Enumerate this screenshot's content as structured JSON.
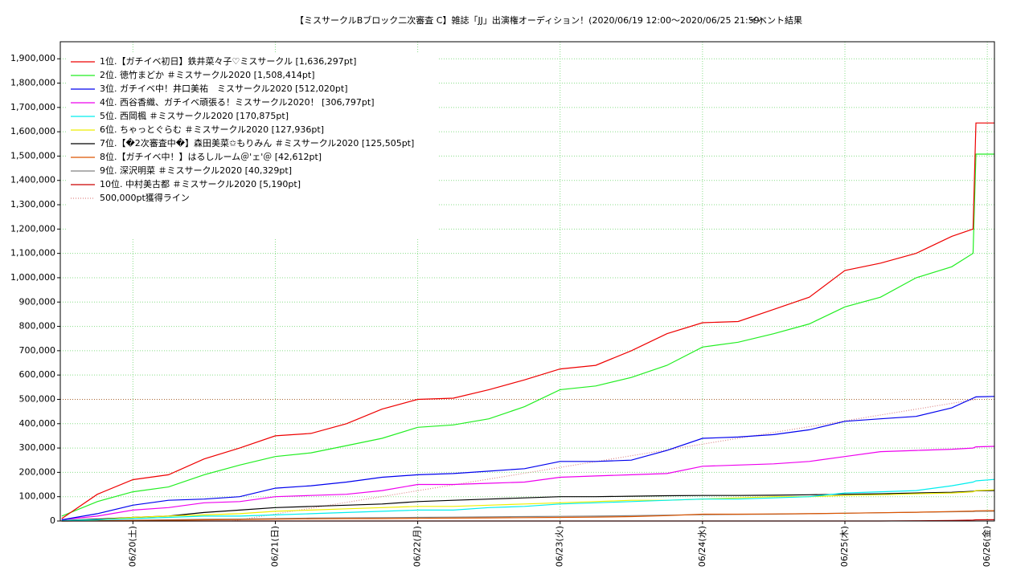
{
  "chart_data": {
    "type": "line",
    "title": "【ミスサークルBブロック二次審査 C】雑誌「JJ」出演権オーディション！(2020/06/19 12:00〜2020/06/25 21:59)",
    "subtitle": "イベント結果",
    "xlim": [
      19.49,
      26.05
    ],
    "ylim": [
      0,
      1970000
    ],
    "xticks": [
      {
        "value": 20,
        "label": "06/20(土)"
      },
      {
        "value": 21,
        "label": "06/21(日)"
      },
      {
        "value": 22,
        "label": "06/22(月)"
      },
      {
        "value": 23,
        "label": "06/23(火)"
      },
      {
        "value": 24,
        "label": "06/24(水)"
      },
      {
        "value": 25,
        "label": "06/25(木)"
      },
      {
        "value": 26,
        "label": "06/26(金)"
      }
    ],
    "yticks": [
      0,
      {
        "value": 100000,
        "label": "100,000"
      },
      {
        "value": 200000,
        "label": "200,000"
      },
      {
        "value": 300000,
        "label": "300,000"
      },
      {
        "value": 400000,
        "label": "400,000"
      },
      {
        "value": 500000,
        "label": "500,000"
      },
      {
        "value": 600000,
        "label": "600,000"
      },
      {
        "value": 700000,
        "label": "700,000"
      },
      {
        "value": 800000,
        "label": "800,000"
      },
      {
        "value": 900000,
        "label": "900,000"
      },
      {
        "value": 1000000,
        "label": "1,000,000"
      },
      {
        "value": 1100000,
        "label": "1,100,000"
      },
      {
        "value": 1200000,
        "label": "1,200,000"
      },
      {
        "value": 1300000,
        "label": "1,300,000"
      },
      {
        "value": 1400000,
        "label": "1,400,000"
      },
      {
        "value": 1500000,
        "label": "1,500,000"
      },
      {
        "value": 1600000,
        "label": "1,600,000"
      },
      {
        "value": 1700000,
        "label": "1,700,000"
      },
      {
        "value": 1800000,
        "label": "1,800,000"
      },
      {
        "value": 1900000,
        "label": "1,900,000"
      }
    ],
    "grid": true,
    "grid_color": "#88dd88",
    "legend": "top-left",
    "x": [
      19.5,
      19.75,
      20,
      20.25,
      20.5,
      20.75,
      21,
      21.25,
      21.5,
      21.75,
      22,
      22.25,
      22.5,
      22.75,
      23,
      23.25,
      23.5,
      23.75,
      24,
      24.25,
      24.5,
      24.75,
      25,
      25.25,
      25.5,
      25.75,
      25.9,
      25.92,
      26.05
    ],
    "series": [
      {
        "name": "1位.【ガチイベ初日】鉄井菜々子♡ミスサークル [1,636,297pt]",
        "color": "#ee0000",
        "values": [
          10000,
          110000,
          170000,
          190000,
          255000,
          300000,
          350000,
          360000,
          400000,
          460000,
          500000,
          505000,
          540000,
          580000,
          625000,
          640000,
          700000,
          770000,
          815000,
          820000,
          870000,
          920000,
          1030000,
          1060000,
          1100000,
          1170000,
          1200000,
          1636000,
          1636000
        ]
      },
      {
        "name": "2位. 徳竹まどか ＃ミスサークル2020 [1,508,414pt]",
        "color": "#22ee22",
        "values": [
          20000,
          80000,
          120000,
          140000,
          190000,
          230000,
          265000,
          280000,
          310000,
          340000,
          385000,
          395000,
          420000,
          470000,
          540000,
          555000,
          590000,
          640000,
          715000,
          735000,
          770000,
          810000,
          880000,
          920000,
          1000000,
          1045000,
          1100000,
          1508000,
          1508000
        ]
      },
      {
        "name": "3位. ガチイベ中！井口美祐　ミスサークル2020 [512,020pt]",
        "color": "#0000ee",
        "values": [
          5000,
          30000,
          65000,
          85000,
          90000,
          100000,
          135000,
          145000,
          160000,
          180000,
          190000,
          195000,
          205000,
          215000,
          245000,
          245000,
          250000,
          290000,
          340000,
          345000,
          355000,
          375000,
          410000,
          420000,
          430000,
          465000,
          505000,
          510000,
          512000
        ]
      },
      {
        "name": "4位. 西谷香織、ガチイベ頑張る！ミスサークル2020！ [306,797pt]",
        "color": "#ee00ee",
        "values": [
          5000,
          20000,
          45000,
          55000,
          75000,
          80000,
          100000,
          105000,
          110000,
          125000,
          150000,
          150000,
          155000,
          160000,
          180000,
          185000,
          190000,
          195000,
          225000,
          230000,
          235000,
          245000,
          265000,
          285000,
          290000,
          295000,
          300000,
          305000,
          307000
        ]
      },
      {
        "name": "5位. 西岡楓 ＃ミスサークル2020 [170,875pt]",
        "color": "#00eeee",
        "values": [
          2000,
          5000,
          10000,
          15000,
          20000,
          20000,
          25000,
          30000,
          35000,
          40000,
          45000,
          45000,
          55000,
          60000,
          70000,
          75000,
          80000,
          85000,
          90000,
          90000,
          95000,
          100000,
          115000,
          120000,
          125000,
          145000,
          160000,
          165000,
          171000
        ]
      },
      {
        "name": "6位. ちゃっとぐらむ ＃ミスサークル2020 [127,936pt]",
        "color": "#eeee00",
        "values": [
          2000,
          5000,
          15000,
          20000,
          25000,
          30000,
          40000,
          45000,
          50000,
          55000,
          60000,
          60000,
          65000,
          70000,
          75000,
          80000,
          85000,
          85000,
          90000,
          95000,
          100000,
          100000,
          105000,
          108000,
          112000,
          115000,
          120000,
          125000,
          128000
        ]
      },
      {
        "name": "7位.【�2次審査中�】森田美菜✩もりみん ＃ミスサークル2020 [125,505pt]",
        "color": "#000000",
        "values": [
          2000,
          8000,
          15000,
          20000,
          35000,
          45000,
          55000,
          60000,
          65000,
          70000,
          80000,
          85000,
          90000,
          95000,
          100000,
          100000,
          102000,
          104000,
          105000,
          105000,
          106000,
          108000,
          110000,
          112000,
          115000,
          118000,
          122000,
          124000,
          125500
        ]
      },
      {
        "name": "8位.【ガチイベ中！】はるしルーム＠'ェ'＠ [42,612pt]",
        "color": "#dd5500",
        "values": [
          0,
          1000,
          2000,
          3000,
          5000,
          6000,
          8000,
          9000,
          10000,
          10000,
          11000,
          12000,
          13000,
          14000,
          15000,
          16000,
          18000,
          22000,
          28000,
          28000,
          29000,
          30000,
          32000,
          34000,
          36000,
          39000,
          41000,
          42000,
          42600
        ]
      },
      {
        "name": "9位. 深沢明菜 ＃ミスサークル2020 [40,329pt]",
        "color": "#808080",
        "values": [
          0,
          1000,
          3000,
          5000,
          7000,
          8000,
          10000,
          12000,
          13000,
          14000,
          15000,
          16000,
          17000,
          18000,
          19000,
          20000,
          22000,
          24000,
          26000,
          27000,
          28000,
          30000,
          32000,
          34000,
          36000,
          38000,
          39000,
          40000,
          40300
        ]
      },
      {
        "name": "10位. 中村美古都 ＃ミスサークル2020 [5,190pt]",
        "color": "#cc0000",
        "values": [
          0,
          0,
          0,
          0,
          0,
          0,
          0,
          0,
          0,
          0,
          0,
          0,
          0,
          0,
          0,
          0,
          0,
          0,
          0,
          0,
          0,
          0,
          0,
          0,
          1000,
          2000,
          4000,
          5000,
          5190
        ]
      },
      {
        "name": "500,000pt獲得ライン",
        "color": "#dd8888",
        "dotted": true,
        "x": [
          20.7,
          25.92
        ],
        "values": [
          0,
          500000
        ]
      }
    ],
    "hline": {
      "value": 500000,
      "color": "#aa6633"
    }
  }
}
